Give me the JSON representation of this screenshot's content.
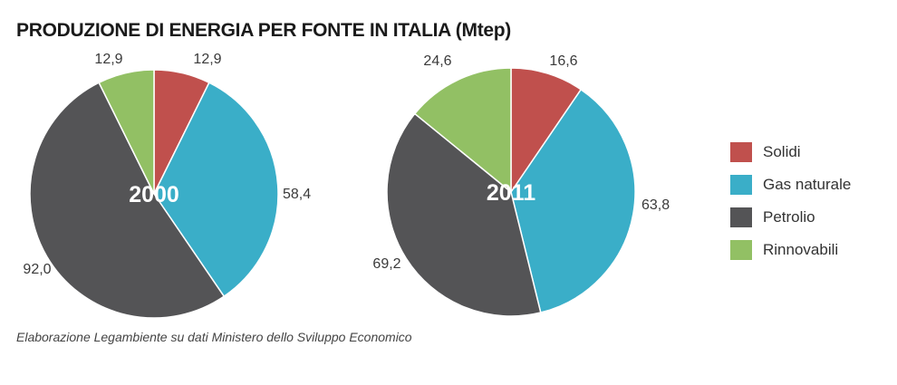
{
  "title": "PRODUZIONE DI ENERGIA PER FONTE IN ITALIA (Mtep)",
  "source": "Elaborazione Legambiente su dati Ministero dello Sviluppo Economico",
  "chart_data": [
    {
      "type": "pie",
      "year": "2000",
      "categories": [
        "Solidi",
        "Gas naturale",
        "Petrolio",
        "Rinnovabili"
      ],
      "values": [
        12.9,
        58.4,
        92.0,
        12.9
      ],
      "value_labels": [
        "12,9",
        "58,4",
        "92,0",
        "12,9"
      ],
      "colors": [
        "#c0504d",
        "#3aaec8",
        "#545456",
        "#92c064"
      ]
    },
    {
      "type": "pie",
      "year": "2011",
      "categories": [
        "Solidi",
        "Gas naturale",
        "Petrolio",
        "Rinnovabili"
      ],
      "values": [
        16.6,
        63.8,
        69.2,
        24.6
      ],
      "value_labels": [
        "16,6",
        "63,8",
        "69,2",
        "24,6"
      ],
      "colors": [
        "#c0504d",
        "#3aaec8",
        "#545456",
        "#92c064"
      ]
    }
  ],
  "legend": {
    "placement": "right",
    "items": [
      {
        "label": "Solidi",
        "color": "#c0504d"
      },
      {
        "label": "Gas naturale",
        "color": "#3aaec8"
      },
      {
        "label": "Petrolio",
        "color": "#545456"
      },
      {
        "label": "Rinnovabili",
        "color": "#92c064"
      }
    ]
  }
}
